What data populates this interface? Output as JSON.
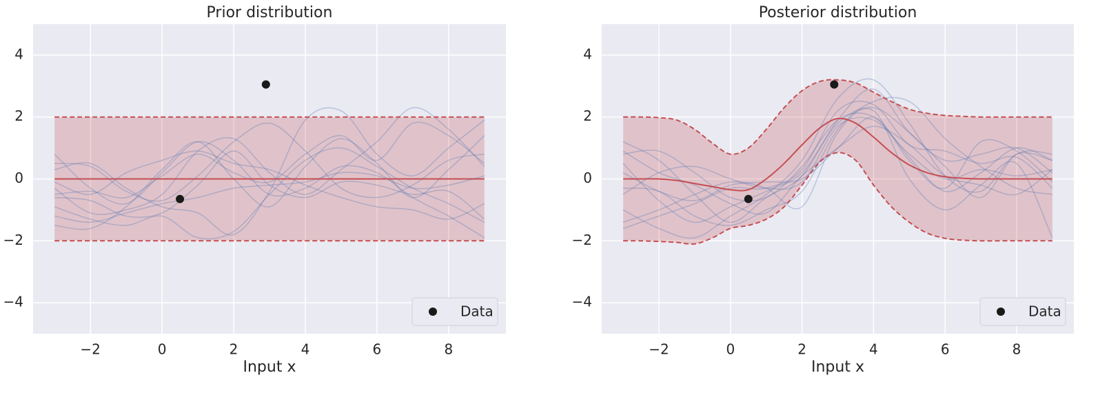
{
  "chart_data": [
    {
      "type": "gp",
      "title": "Prior distribution",
      "xlabel": "Input x",
      "x": [
        -3,
        9
      ],
      "mean": {
        "color": "#c44e52",
        "values": [
          0,
          0
        ]
      },
      "band": {
        "color": "#c44e52",
        "upper": [
          2,
          2
        ],
        "lower": [
          -2,
          -2
        ]
      },
      "samples": {
        "color": "#4c72b0",
        "x": [
          -3,
          -2,
          -1,
          0,
          1,
          2,
          3,
          4,
          5,
          6,
          7,
          8,
          9
        ],
        "values": [
          [
            0.8,
            -0.3,
            -0.8,
            0.2,
            1.2,
            0.6,
            -0.5,
            -0.3,
            0.4,
            0.2,
            -0.6,
            -1.2,
            -1.9
          ],
          [
            -0.3,
            -1.1,
            -1.0,
            -0.5,
            0.9,
            1.3,
            0.2,
            -0.5,
            0.3,
            1.2,
            2.3,
            1.6,
            0.4
          ],
          [
            -1.5,
            -1.6,
            -0.9,
            0.3,
            1.2,
            0.0,
            -0.9,
            0.4,
            1.3,
            0.5,
            -0.6,
            0.3,
            1.4
          ],
          [
            0.5,
            0.4,
            -0.4,
            -0.7,
            0.1,
            1.2,
            1.8,
            0.9,
            -0.3,
            -0.6,
            -0.2,
            0.6,
            0.8
          ],
          [
            -0.6,
            -0.7,
            -1.2,
            -1.1,
            -0.2,
            0.9,
            -0.2,
            -0.6,
            -0.1,
            -0.2,
            -0.5,
            -0.4,
            -1.3
          ],
          [
            -1.2,
            -1.4,
            -1.1,
            -0.8,
            -0.6,
            -0.3,
            -0.2,
            -0.1,
            0.2,
            0.1,
            -0.3,
            -0.2,
            0.1
          ],
          [
            0.3,
            0.5,
            -0.3,
            -0.9,
            -1.1,
            -1.8,
            -0.4,
            1.9,
            2.2,
            0.8,
            0.1,
            1.0,
            1.9
          ],
          [
            -0.9,
            -1.3,
            -1.5,
            -1.2,
            -1.9,
            -1.7,
            -0.5,
            0.6,
            1.0,
            0.4,
            -0.3,
            -0.8,
            -1.4
          ],
          [
            -0.1,
            -0.5,
            0.2,
            0.6,
            0.9,
            0.5,
            0.3,
            -0.2,
            -0.6,
            -0.9,
            -1.0,
            -1.3,
            -0.8
          ],
          [
            -0.5,
            -0.4,
            -0.6,
            0.1,
            0.8,
            0.2,
            -0.1,
            0.8,
            1.4,
            0.6,
            1.8,
            1.4,
            0.5
          ]
        ]
      },
      "points": {
        "name": "Data",
        "color": "#1a1a1a",
        "x": [
          0.5,
          2.9
        ],
        "values": [
          -0.65,
          3.05
        ]
      },
      "legend": "lower right",
      "grid": true,
      "xlim": [
        -3.6,
        9.6
      ],
      "ylim": [
        -5,
        5
      ],
      "xticks": [
        {
          "value": -2,
          "label": "−2"
        },
        0,
        2,
        4,
        6,
        8
      ],
      "yticks": [
        {
          "value": -4,
          "label": "−4"
        },
        {
          "value": -2,
          "label": "−2"
        },
        0,
        2,
        4
      ]
    },
    {
      "type": "gp",
      "title": "Posterior distribution",
      "xlabel": "Input x",
      "x": [
        -3,
        -2.5,
        -2,
        -1.5,
        -1,
        -0.5,
        0,
        0.5,
        1,
        1.5,
        2,
        2.5,
        3,
        3.5,
        4,
        4.5,
        5,
        5.5,
        6,
        6.5,
        7,
        7.5,
        8,
        8.5,
        9
      ],
      "mean": {
        "color": "#c44e52",
        "values": [
          0,
          0,
          0,
          -0.05,
          -0.15,
          -0.25,
          -0.35,
          -0.35,
          0,
          0.5,
          1.1,
          1.65,
          1.95,
          1.8,
          1.35,
          0.85,
          0.45,
          0.2,
          0.07,
          0.02,
          0,
          0,
          0,
          0,
          0
        ]
      },
      "band": {
        "color": "#c44e52",
        "upper": [
          2,
          2,
          1.98,
          1.9,
          1.6,
          1.15,
          0.8,
          1.0,
          1.6,
          2.3,
          2.85,
          3.15,
          3.2,
          3.1,
          2.8,
          2.5,
          2.25,
          2.12,
          2.05,
          2.02,
          2,
          2,
          2,
          2,
          2
        ],
        "lower": [
          -2,
          -2,
          -2.02,
          -2.05,
          -2.1,
          -1.9,
          -1.6,
          -1.5,
          -1.3,
          -0.9,
          -0.2,
          0.55,
          0.85,
          0.6,
          -0.2,
          -0.9,
          -1.4,
          -1.75,
          -1.92,
          -1.98,
          -2,
          -2,
          -2,
          -2,
          -2
        ]
      },
      "samples": {
        "color": "#4c72b0",
        "x": [
          -3,
          -2,
          -1,
          0,
          1,
          2,
          3,
          4,
          5,
          6,
          7,
          8,
          9
        ],
        "values": [
          [
            1.2,
            0.6,
            -0.5,
            -1.4,
            -0.6,
            0.1,
            1.9,
            2.9,
            1.5,
            0.6,
            0.8,
            1.0,
            0.2
          ],
          [
            -1.6,
            -1.2,
            -0.8,
            -0.3,
            -0.3,
            0.3,
            2.2,
            2.4,
            1.1,
            0.9,
            0.5,
            0.7,
            -0.3
          ],
          [
            0.8,
            0.9,
            0.2,
            -0.6,
            -0.6,
            0.4,
            1.9,
            2.0,
            0.7,
            -0.4,
            0.2,
            1.0,
            0.6
          ],
          [
            -0.3,
            -0.4,
            -1.2,
            -1.5,
            -1.0,
            -0.4,
            1.6,
            2.5,
            2.5,
            1.3,
            0.4,
            -0.3,
            -0.5
          ],
          [
            -1.0,
            -1.6,
            -1.9,
            -1.2,
            -0.5,
            0.6,
            2.6,
            3.2,
            1.8,
            0.1,
            -0.4,
            0.8,
            0.6
          ],
          [
            0.2,
            -0.4,
            -0.7,
            -0.2,
            -0.1,
            0.0,
            1.0,
            2.0,
            0.6,
            -0.3,
            1.2,
            0.9,
            -0.1
          ],
          [
            -0.5,
            0.2,
            0.4,
            0.0,
            -0.3,
            -0.1,
            1.7,
            1.9,
            0.8,
            0.0,
            0.3,
            0.1,
            0.3
          ],
          [
            0.5,
            -0.7,
            -1.4,
            -0.9,
            -0.4,
            0.2,
            1.8,
            2.3,
            1.5,
            0.4,
            -0.6,
            0.8,
            0.8
          ],
          [
            -1.4,
            -1.0,
            -0.5,
            -0.1,
            -0.3,
            -0.9,
            1.5,
            2.2,
            0.0,
            -1.0,
            -0.2,
            0.5,
            -1.9
          ],
          [
            0.9,
            0.2,
            -0.2,
            -0.8,
            -1.1,
            0.1,
            1.0,
            1.7,
            1.1,
            0.1,
            -0.2,
            -0.5,
            0.3
          ]
        ]
      },
      "points": {
        "name": "Data",
        "color": "#1a1a1a",
        "x": [
          0.5,
          2.9
        ],
        "values": [
          -0.65,
          3.05
        ]
      },
      "legend": "lower right",
      "grid": true,
      "xlim": [
        -3.6,
        9.6
      ],
      "ylim": [
        -5,
        5
      ],
      "xticks": [
        {
          "value": -2,
          "label": "−2"
        },
        0,
        2,
        4,
        6,
        8
      ],
      "yticks": [
        {
          "value": -4,
          "label": "−4"
        },
        {
          "value": -2,
          "label": "−2"
        },
        0,
        2,
        4
      ]
    }
  ]
}
